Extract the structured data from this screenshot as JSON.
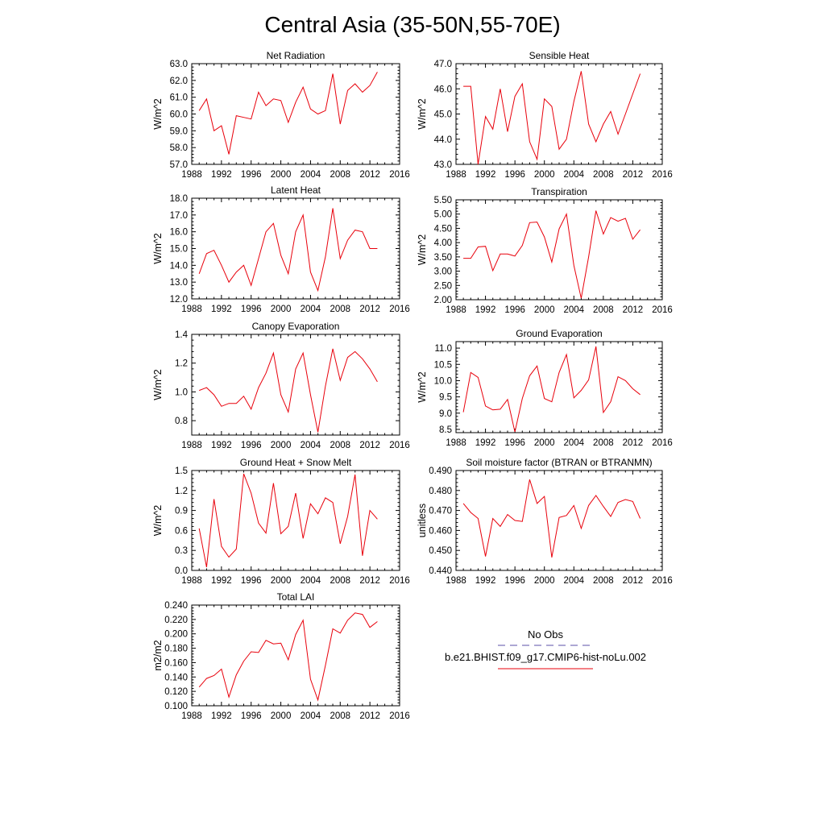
{
  "title": "Central Asia (35-50N,55-70E)",
  "colors": {
    "model_line": "#e8000b",
    "obs_line": "#5b4fa8",
    "axis": "#000000"
  },
  "chart_data": [
    {
      "type": "line",
      "title": "Net Radiation",
      "ylabel": "W/m^2",
      "xlim": [
        1988,
        2016
      ],
      "ylim": [
        57.0,
        63.0
      ],
      "xticks": [
        1988,
        1992,
        1996,
        2000,
        2004,
        2008,
        2012,
        2016
      ],
      "yticks": [
        "57.0",
        "58.0",
        "59.0",
        "60.0",
        "61.0",
        "62.0",
        "63.0"
      ],
      "x": [
        1989,
        1990,
        1991,
        1992,
        1993,
        1994,
        1995,
        1996,
        1997,
        1998,
        1999,
        2000,
        2001,
        2002,
        2003,
        2004,
        2005,
        2006,
        2007,
        2008,
        2009,
        2010,
        2011,
        2012,
        2013
      ],
      "series": [
        {
          "values": [
            60.2,
            60.9,
            59.0,
            59.3,
            57.6,
            59.9,
            59.8,
            59.7,
            61.3,
            60.5,
            60.9,
            60.8,
            59.5,
            60.7,
            61.6,
            60.3,
            60.0,
            60.2,
            62.4,
            59.4,
            61.4,
            61.8,
            61.3,
            61.7,
            62.5
          ]
        }
      ]
    },
    {
      "type": "line",
      "title": "Sensible Heat",
      "ylabel": "W/m^2",
      "xlim": [
        1988,
        2016
      ],
      "ylim": [
        43.0,
        47.0
      ],
      "xticks": [
        1988,
        1992,
        1996,
        2000,
        2004,
        2008,
        2012,
        2016
      ],
      "yticks": [
        "43.0",
        "44.0",
        "45.0",
        "46.0",
        "47.0"
      ],
      "x": [
        1989,
        1990,
        1991,
        1992,
        1993,
        1994,
        1995,
        1996,
        1997,
        1998,
        1999,
        2000,
        2001,
        2002,
        2003,
        2004,
        2005,
        2006,
        2007,
        2008,
        2009,
        2010,
        2011,
        2012,
        2013
      ],
      "series": [
        {
          "values": [
            46.1,
            46.1,
            43.0,
            44.9,
            44.4,
            46.0,
            44.3,
            45.7,
            46.2,
            43.9,
            43.2,
            45.6,
            45.3,
            43.6,
            44.0,
            45.5,
            46.7,
            44.6,
            43.9,
            44.6,
            45.1,
            44.2,
            45.0,
            45.8,
            46.6
          ]
        }
      ]
    },
    {
      "type": "line",
      "title": "Latent Heat",
      "ylabel": "W/m^2",
      "xlim": [
        1988,
        2016
      ],
      "ylim": [
        12.0,
        18.0
      ],
      "xticks": [
        1988,
        1992,
        1996,
        2000,
        2004,
        2008,
        2012,
        2016
      ],
      "yticks": [
        "12.0",
        "13.0",
        "14.0",
        "15.0",
        "16.0",
        "17.0",
        "18.0"
      ],
      "x": [
        1989,
        1990,
        1991,
        1992,
        1993,
        1994,
        1995,
        1996,
        1997,
        1998,
        1999,
        2000,
        2001,
        2002,
        2003,
        2004,
        2005,
        2006,
        2007,
        2008,
        2009,
        2010,
        2011,
        2012,
        2013
      ],
      "series": [
        {
          "values": [
            13.5,
            14.7,
            14.9,
            14.0,
            13.0,
            13.6,
            14.0,
            12.8,
            14.4,
            16.0,
            16.5,
            14.6,
            13.5,
            16.0,
            17.0,
            13.6,
            12.5,
            14.5,
            17.4,
            14.4,
            15.5,
            16.1,
            16.0,
            15.0,
            15.0
          ]
        }
      ]
    },
    {
      "type": "line",
      "title": "Transpiration",
      "ylabel": "W/m^2",
      "xlim": [
        1988,
        2016
      ],
      "ylim": [
        2.0,
        5.5
      ],
      "xticks": [
        1988,
        1992,
        1996,
        2000,
        2004,
        2008,
        2012,
        2016
      ],
      "yticks": [
        "2.00",
        "2.50",
        "3.00",
        "3.50",
        "4.00",
        "4.50",
        "5.00",
        "5.50"
      ],
      "x": [
        1989,
        1990,
        1991,
        1992,
        1993,
        1994,
        1995,
        1996,
        1997,
        1998,
        1999,
        2000,
        2001,
        2002,
        2003,
        2004,
        2005,
        2006,
        2007,
        2008,
        2009,
        2010,
        2011,
        2012,
        2013
      ],
      "series": [
        {
          "values": [
            3.45,
            3.45,
            3.85,
            3.87,
            3.02,
            3.6,
            3.6,
            3.53,
            3.9,
            4.7,
            4.72,
            4.2,
            3.32,
            4.48,
            5.0,
            3.2,
            2.05,
            3.5,
            5.12,
            4.3,
            4.88,
            4.75,
            4.85,
            4.12,
            4.45
          ]
        }
      ]
    },
    {
      "type": "line",
      "title": "Canopy Evaporation",
      "ylabel": "W/m^2",
      "xlim": [
        1988,
        2016
      ],
      "ylim": [
        0.7,
        1.4
      ],
      "xticks": [
        1988,
        1992,
        1996,
        2000,
        2004,
        2008,
        2012,
        2016
      ],
      "yticks": [
        "0.8",
        "1.0",
        "1.2",
        "1.4"
      ],
      "ytick_values": [
        0.8,
        1.0,
        1.2,
        1.4
      ],
      "x": [
        1989,
        1990,
        1991,
        1992,
        1993,
        1994,
        1995,
        1996,
        1997,
        1998,
        1999,
        2000,
        2001,
        2002,
        2003,
        2004,
        2005,
        2006,
        2007,
        2008,
        2009,
        2010,
        2011,
        2012,
        2013
      ],
      "series": [
        {
          "values": [
            1.01,
            1.03,
            0.98,
            0.9,
            0.92,
            0.92,
            0.97,
            0.88,
            1.03,
            1.13,
            1.27,
            0.98,
            0.86,
            1.16,
            1.27,
            0.98,
            0.72,
            1.04,
            1.3,
            1.08,
            1.24,
            1.28,
            1.23,
            1.16,
            1.07
          ]
        }
      ]
    },
    {
      "type": "line",
      "title": "Ground Evaporation",
      "ylabel": "W/m^2",
      "xlim": [
        1988,
        2016
      ],
      "ylim": [
        8.4,
        11.2
      ],
      "xticks": [
        1988,
        1992,
        1996,
        2000,
        2004,
        2008,
        2012,
        2016
      ],
      "yticks": [
        "8.5",
        "9.0",
        "9.5",
        "10.0",
        "10.5",
        "11.0"
      ],
      "ytick_values": [
        8.5,
        9.0,
        9.5,
        10.0,
        10.5,
        11.0
      ],
      "x": [
        1989,
        1990,
        1991,
        1992,
        1993,
        1994,
        1995,
        1996,
        1997,
        1998,
        1999,
        2000,
        2001,
        2002,
        2003,
        2004,
        2005,
        2006,
        2007,
        2008,
        2009,
        2010,
        2011,
        2012,
        2013
      ],
      "series": [
        {
          "values": [
            9.03,
            10.25,
            10.1,
            9.22,
            9.1,
            9.12,
            9.42,
            8.42,
            9.45,
            10.15,
            10.45,
            9.45,
            9.35,
            10.25,
            10.8,
            9.47,
            9.7,
            10.02,
            11.05,
            9.02,
            9.35,
            10.12,
            10.0,
            9.75,
            9.57
          ]
        }
      ]
    },
    {
      "type": "line",
      "title": "Ground Heat + Snow Melt",
      "ylabel": "W/m^2",
      "xlim": [
        1988,
        2016
      ],
      "ylim": [
        0.0,
        1.5
      ],
      "xticks": [
        1988,
        1992,
        1996,
        2000,
        2004,
        2008,
        2012,
        2016
      ],
      "yticks": [
        "0.0",
        "0.3",
        "0.6",
        "0.9",
        "1.2",
        "1.5"
      ],
      "x": [
        1989,
        1990,
        1991,
        1992,
        1993,
        1994,
        1995,
        1996,
        1997,
        1998,
        1999,
        2000,
        2001,
        2002,
        2003,
        2004,
        2005,
        2006,
        2007,
        2008,
        2009,
        2010,
        2011,
        2012,
        2013
      ],
      "series": [
        {
          "values": [
            0.63,
            0.05,
            1.07,
            0.36,
            0.2,
            0.32,
            1.45,
            1.16,
            0.71,
            0.56,
            1.31,
            0.55,
            0.66,
            1.16,
            0.48,
            1.0,
            0.85,
            1.09,
            1.02,
            0.4,
            0.81,
            1.44,
            0.22,
            0.9,
            0.77
          ]
        }
      ]
    },
    {
      "type": "line",
      "title": "Soil moisture factor (BTRAN or BTRANMN)",
      "ylabel": "unitless",
      "xlim": [
        1988,
        2016
      ],
      "ylim": [
        0.44,
        0.49
      ],
      "xticks": [
        1988,
        1992,
        1996,
        2000,
        2004,
        2008,
        2012,
        2016
      ],
      "yticks": [
        "0.440",
        "0.450",
        "0.460",
        "0.470",
        "0.480",
        "0.490"
      ],
      "x": [
        1989,
        1990,
        1991,
        1992,
        1993,
        1994,
        1995,
        1996,
        1997,
        1998,
        1999,
        2000,
        2001,
        2002,
        2003,
        2004,
        2005,
        2006,
        2007,
        2008,
        2009,
        2010,
        2011,
        2012,
        2013
      ],
      "series": [
        {
          "values": [
            0.4735,
            0.469,
            0.466,
            0.447,
            0.466,
            0.462,
            0.468,
            0.465,
            0.4645,
            0.4855,
            0.4735,
            0.477,
            0.4465,
            0.4665,
            0.4675,
            0.4725,
            0.461,
            0.4725,
            0.4775,
            0.472,
            0.467,
            0.474,
            0.4755,
            0.4745,
            0.466
          ]
        }
      ]
    },
    {
      "type": "line",
      "title": "Total LAI",
      "ylabel": "m2/m2",
      "xlim": [
        1988,
        2016
      ],
      "ylim": [
        0.1,
        0.24
      ],
      "xticks": [
        1988,
        1992,
        1996,
        2000,
        2004,
        2008,
        2012,
        2016
      ],
      "yticks": [
        "0.100",
        "0.120",
        "0.140",
        "0.160",
        "0.180",
        "0.200",
        "0.220",
        "0.240"
      ],
      "x": [
        1989,
        1990,
        1991,
        1992,
        1993,
        1994,
        1995,
        1996,
        1997,
        1998,
        1999,
        2000,
        2001,
        2002,
        2003,
        2004,
        2005,
        2006,
        2007,
        2008,
        2009,
        2010,
        2011,
        2012,
        2013
      ],
      "series": [
        {
          "values": [
            0.126,
            0.138,
            0.142,
            0.151,
            0.112,
            0.143,
            0.162,
            0.175,
            0.174,
            0.191,
            0.186,
            0.187,
            0.164,
            0.199,
            0.219,
            0.137,
            0.108,
            0.156,
            0.207,
            0.201,
            0.219,
            0.229,
            0.227,
            0.209,
            0.217
          ]
        }
      ]
    }
  ],
  "legend": {
    "obs_label": "No Obs",
    "model_label": "b.e21.BHIST.f09_g17.CMIP6-hist-noLu.002"
  }
}
